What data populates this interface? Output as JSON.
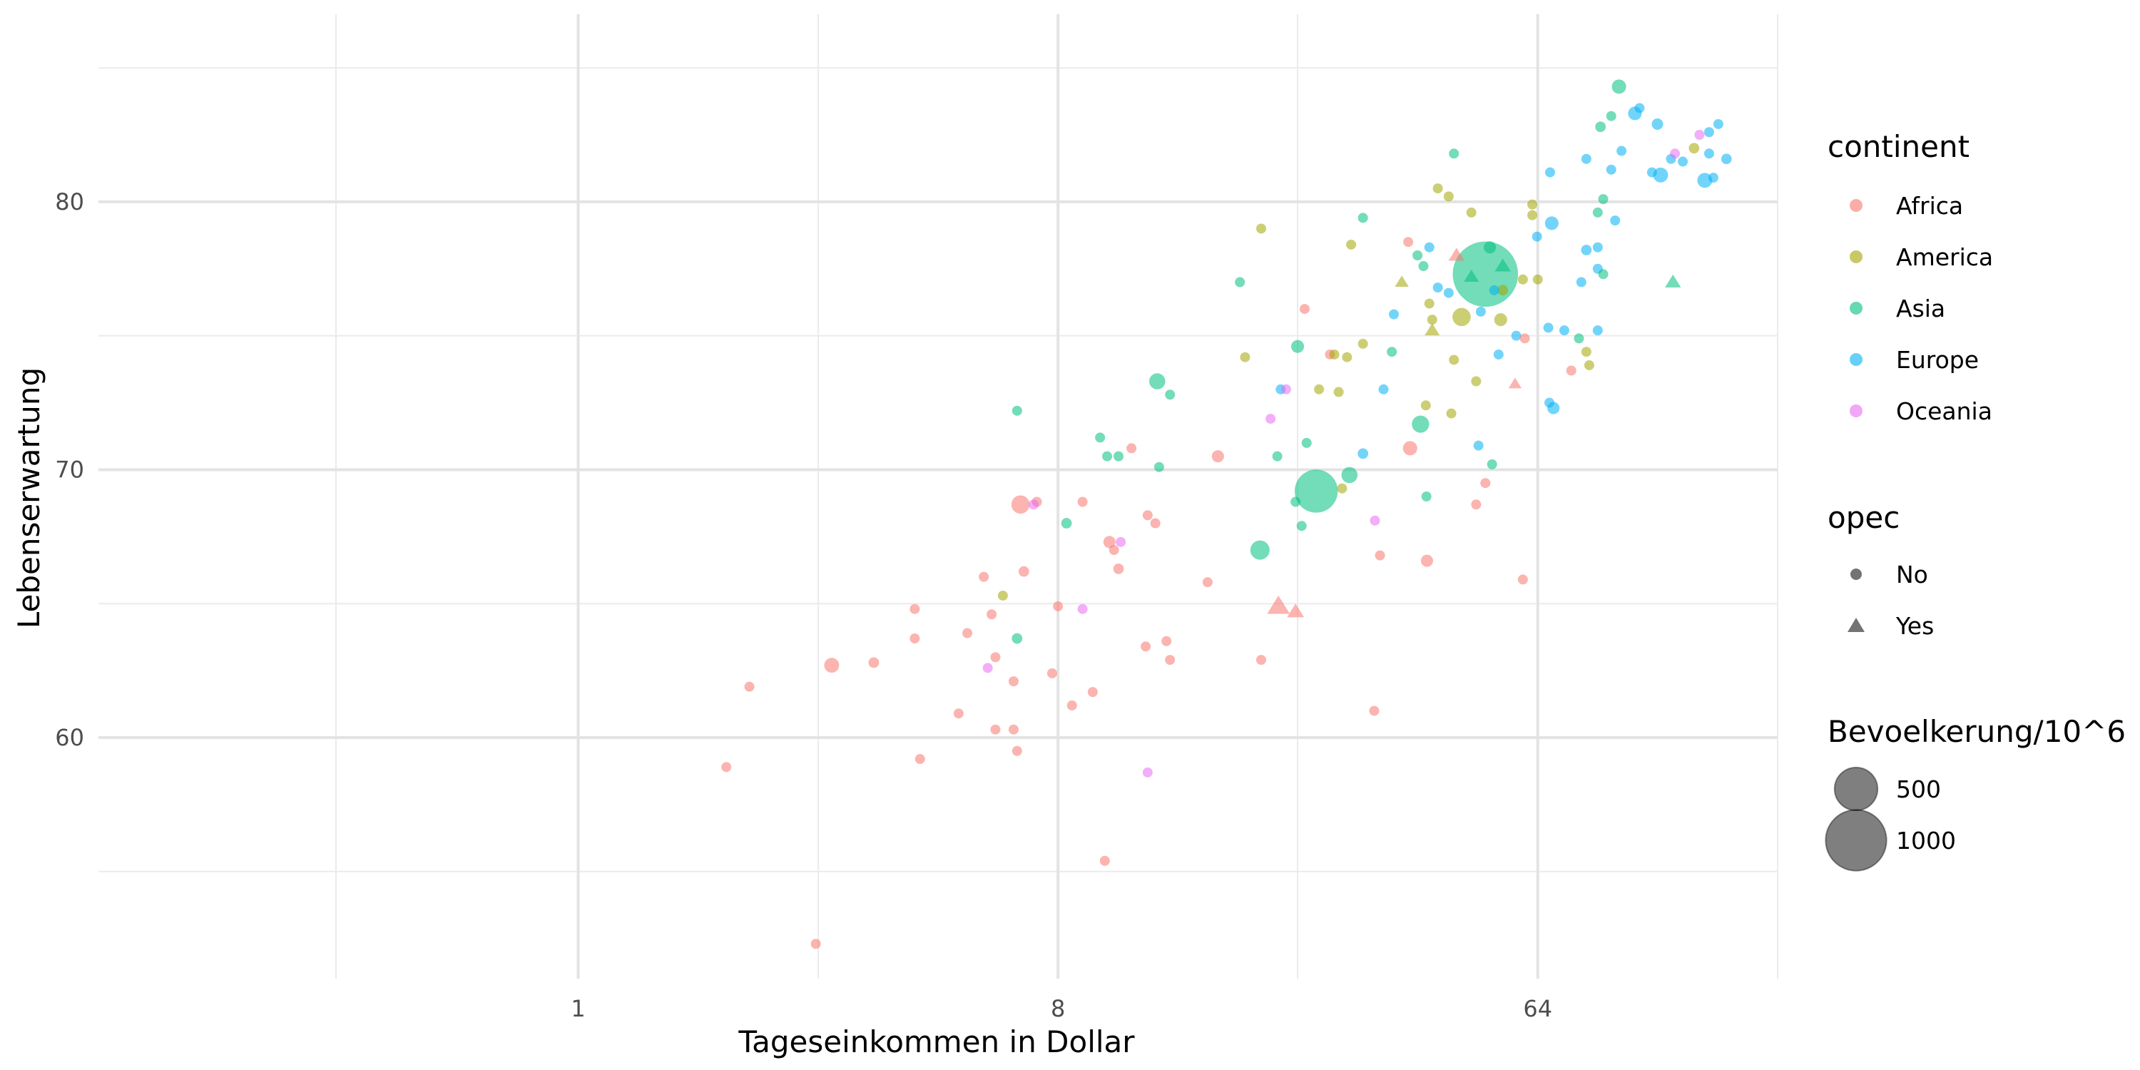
{
  "chart_data": {
    "type": "scatter",
    "x_scale": "log2",
    "xlim": [
      0.125,
      181
    ],
    "ylim": [
      51,
      87
    ],
    "x_major_ticks": [
      1,
      8,
      64
    ],
    "x_minor_ticks": [
      0.35,
      2.83,
      22.6,
      181
    ],
    "y_major_ticks": [
      60,
      70,
      80
    ],
    "y_minor_ticks": [
      55,
      65,
      75,
      85
    ],
    "tick_labels": {
      "x": [
        "1",
        "8",
        "64"
      ],
      "y": [
        "60",
        "70",
        "80"
      ]
    },
    "xlabel": "Tageseinkommen in Dollar",
    "ylabel": "Lebenserwartung",
    "grid": true,
    "legend_position": "right",
    "legend": {
      "continent": {
        "title": "continent",
        "items": [
          {
            "label": "Africa",
            "color": "#F8766D"
          },
          {
            "label": "America",
            "color": "#A3A500"
          },
          {
            "label": "Asia",
            "color": "#00BF7D"
          },
          {
            "label": "Europe",
            "color": "#00B0F6"
          },
          {
            "label": "Oceania",
            "color": "#E76BF3"
          }
        ]
      },
      "opec": {
        "title": "opec",
        "items": [
          {
            "label": "No",
            "shape": "circle"
          },
          {
            "label": "Yes",
            "shape": "triangle"
          }
        ]
      },
      "size": {
        "title": "Bevoelkerung/10^6",
        "items": [
          {
            "label": "500",
            "value": 500
          },
          {
            "label": "1000",
            "value": 1000
          }
        ]
      }
    },
    "points": [
      {
        "c": "Africa",
        "x": 1.9,
        "y": 58.9,
        "s": 15
      },
      {
        "c": "Africa",
        "x": 2.1,
        "y": 61.9,
        "s": 20
      },
      {
        "c": "Africa",
        "x": 2.8,
        "y": 52.3,
        "s": 8
      },
      {
        "c": "Africa",
        "x": 3.0,
        "y": 62.7,
        "s": 60
      },
      {
        "c": "Africa",
        "x": 3.6,
        "y": 62.8,
        "s": 30
      },
      {
        "c": "Africa",
        "x": 4.3,
        "y": 64.8,
        "s": 12
      },
      {
        "c": "Africa",
        "x": 4.3,
        "y": 63.7,
        "s": 20
      },
      {
        "c": "Africa",
        "x": 4.4,
        "y": 59.2,
        "s": 25
      },
      {
        "c": "Africa",
        "x": 5.2,
        "y": 60.9,
        "s": 12
      },
      {
        "c": "Africa",
        "x": 5.4,
        "y": 63.9,
        "s": 25
      },
      {
        "c": "Africa",
        "x": 5.8,
        "y": 66.0,
        "s": 10
      },
      {
        "c": "Africa",
        "x": 6.0,
        "y": 64.6,
        "s": 15
      },
      {
        "c": "Africa",
        "x": 6.1,
        "y": 60.3,
        "s": 10
      },
      {
        "c": "Africa",
        "x": 6.1,
        "y": 63.0,
        "s": 8
      },
      {
        "c": "Africa",
        "x": 6.8,
        "y": 68.7,
        "s": 90
      },
      {
        "c": "Africa",
        "x": 6.6,
        "y": 62.1,
        "s": 20
      },
      {
        "c": "Africa",
        "x": 6.6,
        "y": 60.3,
        "s": 20
      },
      {
        "c": "Africa",
        "x": 6.7,
        "y": 59.5,
        "s": 15
      },
      {
        "c": "Africa",
        "x": 6.9,
        "y": 66.2,
        "s": 30
      },
      {
        "c": "Africa",
        "x": 7.3,
        "y": 68.8,
        "s": 25
      },
      {
        "c": "Africa",
        "x": 7.8,
        "y": 62.4,
        "s": 20
      },
      {
        "c": "Africa",
        "x": 8.0,
        "y": 64.9,
        "s": 15
      },
      {
        "c": "Africa",
        "x": 8.5,
        "y": 61.2,
        "s": 15
      },
      {
        "c": "Africa",
        "x": 8.9,
        "y": 68.8,
        "s": 10
      },
      {
        "c": "Africa",
        "x": 9.3,
        "y": 61.7,
        "s": 15
      },
      {
        "c": "Africa",
        "x": 9.8,
        "y": 55.4,
        "s": 10
      },
      {
        "c": "Africa",
        "x": 10.0,
        "y": 67.3,
        "s": 40
      },
      {
        "c": "Africa",
        "x": 10.2,
        "y": 67.0,
        "s": 12
      },
      {
        "c": "Africa",
        "x": 10.4,
        "y": 66.3,
        "s": 30
      },
      {
        "c": "Africa",
        "x": 11.0,
        "y": 70.8,
        "s": 12
      },
      {
        "c": "Africa",
        "x": 11.8,
        "y": 68.3,
        "s": 25
      },
      {
        "c": "Africa",
        "x": 12.2,
        "y": 68.0,
        "s": 10
      },
      {
        "c": "Africa",
        "x": 12.8,
        "y": 63.6,
        "s": 15
      },
      {
        "c": "Africa",
        "x": 13.0,
        "y": 62.9,
        "s": 25
      },
      {
        "c": "Africa",
        "x": 11.7,
        "y": 63.4,
        "s": 20
      },
      {
        "c": "Africa",
        "x": 15.3,
        "y": 65.8,
        "s": 25
      },
      {
        "c": "Africa",
        "x": 16.0,
        "y": 70.5,
        "s": 40
      },
      {
        "c": "Africa",
        "x": 19.3,
        "y": 62.9,
        "s": 15
      },
      {
        "c": "Africa",
        "x": 23.3,
        "y": 76.0,
        "s": 8
      },
      {
        "c": "Africa",
        "x": 26.0,
        "y": 74.3,
        "s": 15
      },
      {
        "c": "Africa",
        "x": 31.5,
        "y": 61.0,
        "s": 10
      },
      {
        "c": "Africa",
        "x": 32.3,
        "y": 66.8,
        "s": 12
      },
      {
        "c": "Africa",
        "x": 36.5,
        "y": 78.5,
        "s": 20
      },
      {
        "c": "Africa",
        "x": 36.8,
        "y": 70.8,
        "s": 55
      },
      {
        "c": "Africa",
        "x": 39.6,
        "y": 66.6,
        "s": 40
      },
      {
        "c": "Africa",
        "x": 51.0,
        "y": 69.5,
        "s": 10
      },
      {
        "c": "Africa",
        "x": 49.0,
        "y": 68.7,
        "s": 10
      },
      {
        "c": "Africa",
        "x": 60.5,
        "y": 74.9,
        "s": 10
      },
      {
        "c": "Africa",
        "x": 60.0,
        "y": 65.9,
        "s": 10
      },
      {
        "c": "Africa",
        "x": 74.0,
        "y": 73.7,
        "s": 8
      },
      {
        "c": "Africa",
        "x": 20.8,
        "y": 64.9,
        "s": 80,
        "t": 1
      },
      {
        "c": "Africa",
        "x": 22.4,
        "y": 64.7,
        "s": 45,
        "t": 1
      },
      {
        "c": "Africa",
        "x": 45.0,
        "y": 78.0,
        "s": 40,
        "t": 1
      },
      {
        "c": "Africa",
        "x": 58.0,
        "y": 73.2,
        "s": 25,
        "t": 1
      },
      {
        "c": "America",
        "x": 6.3,
        "y": 65.3,
        "s": 15
      },
      {
        "c": "America",
        "x": 18.0,
        "y": 74.2,
        "s": 12
      },
      {
        "c": "America",
        "x": 19.3,
        "y": 79.0,
        "s": 12
      },
      {
        "c": "America",
        "x": 24.8,
        "y": 73.0,
        "s": 15
      },
      {
        "c": "America",
        "x": 26.5,
        "y": 74.3,
        "s": 12
      },
      {
        "c": "America",
        "x": 27.0,
        "y": 72.9,
        "s": 12
      },
      {
        "c": "America",
        "x": 27.4,
        "y": 69.3,
        "s": 12
      },
      {
        "c": "America",
        "x": 28.0,
        "y": 74.2,
        "s": 10
      },
      {
        "c": "America",
        "x": 28.5,
        "y": 78.4,
        "s": 15
      },
      {
        "c": "America",
        "x": 30.0,
        "y": 74.7,
        "s": 12
      },
      {
        "c": "America",
        "x": 40.0,
        "y": 76.2,
        "s": 12
      },
      {
        "c": "America",
        "x": 40.5,
        "y": 75.6,
        "s": 10
      },
      {
        "c": "America",
        "x": 41.5,
        "y": 80.5,
        "s": 25
      },
      {
        "c": "America",
        "x": 43.5,
        "y": 80.2,
        "s": 25
      },
      {
        "c": "America",
        "x": 44.0,
        "y": 72.1,
        "s": 10
      },
      {
        "c": "America",
        "x": 44.5,
        "y": 74.1,
        "s": 8
      },
      {
        "c": "America",
        "x": 46.0,
        "y": 75.7,
        "s": 90
      },
      {
        "c": "America",
        "x": 48.0,
        "y": 79.6,
        "s": 10
      },
      {
        "c": "America",
        "x": 49.0,
        "y": 73.3,
        "s": 15
      },
      {
        "c": "America",
        "x": 54.5,
        "y": 75.6,
        "s": 45
      },
      {
        "c": "America",
        "x": 55.0,
        "y": 76.7,
        "s": 30
      },
      {
        "c": "America",
        "x": 60.0,
        "y": 77.1,
        "s": 12
      },
      {
        "c": "America",
        "x": 62.5,
        "y": 79.9,
        "s": 15
      },
      {
        "c": "America",
        "x": 62.5,
        "y": 79.5,
        "s": 12
      },
      {
        "c": "America",
        "x": 64.0,
        "y": 77.1,
        "s": 12
      },
      {
        "c": "America",
        "x": 79.0,
        "y": 74.4,
        "s": 10
      },
      {
        "c": "America",
        "x": 80.0,
        "y": 73.9,
        "s": 10
      },
      {
        "c": "America",
        "x": 126.0,
        "y": 82.0,
        "s": 30
      },
      {
        "c": "America",
        "x": 39.4,
        "y": 72.4,
        "s": 8
      },
      {
        "c": "America",
        "x": 35.5,
        "y": 77.0,
        "s": 30,
        "t": 1
      },
      {
        "c": "America",
        "x": 40.5,
        "y": 75.2,
        "s": 35,
        "t": 1
      },
      {
        "c": "Asia",
        "x": 6.7,
        "y": 72.2,
        "s": 25
      },
      {
        "c": "Asia",
        "x": 6.7,
        "y": 63.7,
        "s": 30
      },
      {
        "c": "Asia",
        "x": 8.3,
        "y": 68.0,
        "s": 30
      },
      {
        "c": "Asia",
        "x": 9.6,
        "y": 71.2,
        "s": 25
      },
      {
        "c": "Asia",
        "x": 9.9,
        "y": 70.5,
        "s": 20
      },
      {
        "c": "Asia",
        "x": 10.4,
        "y": 70.5,
        "s": 20
      },
      {
        "c": "Asia",
        "x": 12.4,
        "y": 70.1,
        "s": 20
      },
      {
        "c": "Asia",
        "x": 12.3,
        "y": 73.3,
        "s": 70
      },
      {
        "c": "Asia",
        "x": 13.0,
        "y": 72.8,
        "s": 12
      },
      {
        "c": "Asia",
        "x": 17.6,
        "y": 77.0,
        "s": 10
      },
      {
        "c": "Asia",
        "x": 19.2,
        "y": 67.0,
        "s": 100
      },
      {
        "c": "Asia",
        "x": 20.7,
        "y": 70.5,
        "s": 25
      },
      {
        "c": "Asia",
        "x": 22.4,
        "y": 68.8,
        "s": 25
      },
      {
        "c": "Asia",
        "x": 22.6,
        "y": 74.6,
        "s": 45
      },
      {
        "c": "Asia",
        "x": 23.0,
        "y": 67.9,
        "s": 15
      },
      {
        "c": "Asia",
        "x": 23.5,
        "y": 71.0,
        "s": 10
      },
      {
        "c": "Asia",
        "x": 24.5,
        "y": 69.2,
        "s": 500
      },
      {
        "c": "Asia",
        "x": 28.3,
        "y": 69.8,
        "s": 70
      },
      {
        "c": "Asia",
        "x": 30.0,
        "y": 79.4,
        "s": 20
      },
      {
        "c": "Asia",
        "x": 34.0,
        "y": 74.4,
        "s": 10
      },
      {
        "c": "Asia",
        "x": 38.5,
        "y": 71.7,
        "s": 80
      },
      {
        "c": "Asia",
        "x": 39.5,
        "y": 69.0,
        "s": 12
      },
      {
        "c": "Asia",
        "x": 38.0,
        "y": 78.0,
        "s": 12
      },
      {
        "c": "Asia",
        "x": 39.0,
        "y": 77.6,
        "s": 25
      },
      {
        "c": "Asia",
        "x": 44.5,
        "y": 81.8,
        "s": 8
      },
      {
        "c": "Asia",
        "x": 51.0,
        "y": 77.3,
        "s": 1150
      },
      {
        "c": "Asia",
        "x": 52.0,
        "y": 78.3,
        "s": 40
      },
      {
        "c": "Asia",
        "x": 52.5,
        "y": 70.2,
        "s": 15
      },
      {
        "c": "Asia",
        "x": 76.5,
        "y": 74.9,
        "s": 25
      },
      {
        "c": "Asia",
        "x": 83.0,
        "y": 79.6,
        "s": 10
      },
      {
        "c": "Asia",
        "x": 85.0,
        "y": 80.1,
        "s": 25
      },
      {
        "c": "Asia",
        "x": 85.0,
        "y": 77.3,
        "s": 12
      },
      {
        "c": "Asia",
        "x": 88.0,
        "y": 83.2,
        "s": 20
      },
      {
        "c": "Asia",
        "x": 91.0,
        "y": 84.3,
        "s": 55
      },
      {
        "c": "Asia",
        "x": 84.0,
        "y": 82.8,
        "s": 30
      },
      {
        "c": "Asia",
        "x": 48.0,
        "y": 77.2,
        "s": 35,
        "t": 1
      },
      {
        "c": "Asia",
        "x": 55.0,
        "y": 77.6,
        "s": 40,
        "t": 1
      },
      {
        "c": "Asia",
        "x": 115.0,
        "y": 77.0,
        "s": 40,
        "t": 1
      },
      {
        "c": "Europe",
        "x": 21.0,
        "y": 73.0,
        "s": 12
      },
      {
        "c": "Europe",
        "x": 30.0,
        "y": 70.6,
        "s": 30
      },
      {
        "c": "Europe",
        "x": 32.8,
        "y": 73.0,
        "s": 12
      },
      {
        "c": "Europe",
        "x": 34.3,
        "y": 75.8,
        "s": 12
      },
      {
        "c": "Europe",
        "x": 40.0,
        "y": 78.3,
        "s": 12
      },
      {
        "c": "Europe",
        "x": 41.5,
        "y": 76.8,
        "s": 15
      },
      {
        "c": "Europe",
        "x": 43.5,
        "y": 76.6,
        "s": 15
      },
      {
        "c": "Europe",
        "x": 49.5,
        "y": 70.9,
        "s": 20
      },
      {
        "c": "Europe",
        "x": 50.0,
        "y": 75.9,
        "s": 20
      },
      {
        "c": "Europe",
        "x": 53.0,
        "y": 76.7,
        "s": 12
      },
      {
        "c": "Europe",
        "x": 54.0,
        "y": 74.3,
        "s": 15
      },
      {
        "c": "Europe",
        "x": 58.3,
        "y": 75.0,
        "s": 15
      },
      {
        "c": "Europe",
        "x": 63.8,
        "y": 78.7,
        "s": 12
      },
      {
        "c": "Europe",
        "x": 67.0,
        "y": 75.3,
        "s": 20
      },
      {
        "c": "Europe",
        "x": 67.5,
        "y": 81.1,
        "s": 20
      },
      {
        "c": "Europe",
        "x": 68.5,
        "y": 72.3,
        "s": 40
      },
      {
        "c": "Europe",
        "x": 67.3,
        "y": 72.5,
        "s": 20
      },
      {
        "c": "Europe",
        "x": 68.0,
        "y": 79.2,
        "s": 50
      },
      {
        "c": "Europe",
        "x": 71.8,
        "y": 75.2,
        "s": 15
      },
      {
        "c": "Europe",
        "x": 77.3,
        "y": 77.0,
        "s": 20
      },
      {
        "c": "Europe",
        "x": 79.0,
        "y": 81.6,
        "s": 25
      },
      {
        "c": "Europe",
        "x": 79.0,
        "y": 78.2,
        "s": 30
      },
      {
        "c": "Europe",
        "x": 83.0,
        "y": 75.2,
        "s": 15
      },
      {
        "c": "Europe",
        "x": 83.0,
        "y": 78.3,
        "s": 15
      },
      {
        "c": "Europe",
        "x": 83.0,
        "y": 77.5,
        "s": 15
      },
      {
        "c": "Europe",
        "x": 88.0,
        "y": 81.2,
        "s": 15
      },
      {
        "c": "Europe",
        "x": 89.5,
        "y": 79.3,
        "s": 20
      },
      {
        "c": "Europe",
        "x": 92.0,
        "y": 81.9,
        "s": 15
      },
      {
        "c": "Europe",
        "x": 97.5,
        "y": 83.3,
        "s": 50
      },
      {
        "c": "Europe",
        "x": 99.5,
        "y": 83.5,
        "s": 20
      },
      {
        "c": "Europe",
        "x": 105.0,
        "y": 81.1,
        "s": 15
      },
      {
        "c": "Europe",
        "x": 107.5,
        "y": 82.9,
        "s": 35
      },
      {
        "c": "Europe",
        "x": 109.0,
        "y": 81.0,
        "s": 60
      },
      {
        "c": "Europe",
        "x": 114.0,
        "y": 81.6,
        "s": 25
      },
      {
        "c": "Europe",
        "x": 120.0,
        "y": 81.5,
        "s": 25
      },
      {
        "c": "Europe",
        "x": 132.0,
        "y": 80.8,
        "s": 60
      },
      {
        "c": "Europe",
        "x": 134.5,
        "y": 82.6,
        "s": 20
      },
      {
        "c": "Europe",
        "x": 134.5,
        "y": 81.8,
        "s": 25
      },
      {
        "c": "Europe",
        "x": 137.0,
        "y": 80.9,
        "s": 20
      },
      {
        "c": "Europe",
        "x": 140.0,
        "y": 82.9,
        "s": 12
      },
      {
        "c": "Europe",
        "x": 145.0,
        "y": 81.6,
        "s": 30
      },
      {
        "c": "Oceania",
        "x": 5.9,
        "y": 62.6,
        "s": 10
      },
      {
        "c": "Oceania",
        "x": 7.2,
        "y": 68.7,
        "s": 12
      },
      {
        "c": "Oceania",
        "x": 8.9,
        "y": 64.8,
        "s": 10
      },
      {
        "c": "Oceania",
        "x": 10.5,
        "y": 67.3,
        "s": 10
      },
      {
        "c": "Oceania",
        "x": 11.8,
        "y": 58.7,
        "s": 15
      },
      {
        "c": "Oceania",
        "x": 20.1,
        "y": 71.9,
        "s": 10
      },
      {
        "c": "Oceania",
        "x": 21.5,
        "y": 73.0,
        "s": 10
      },
      {
        "c": "Oceania",
        "x": 31.6,
        "y": 68.1,
        "s": 10
      },
      {
        "c": "Oceania",
        "x": 116.0,
        "y": 81.8,
        "s": 20
      },
      {
        "c": "Oceania",
        "x": 129.0,
        "y": 82.5,
        "s": 25
      }
    ]
  }
}
